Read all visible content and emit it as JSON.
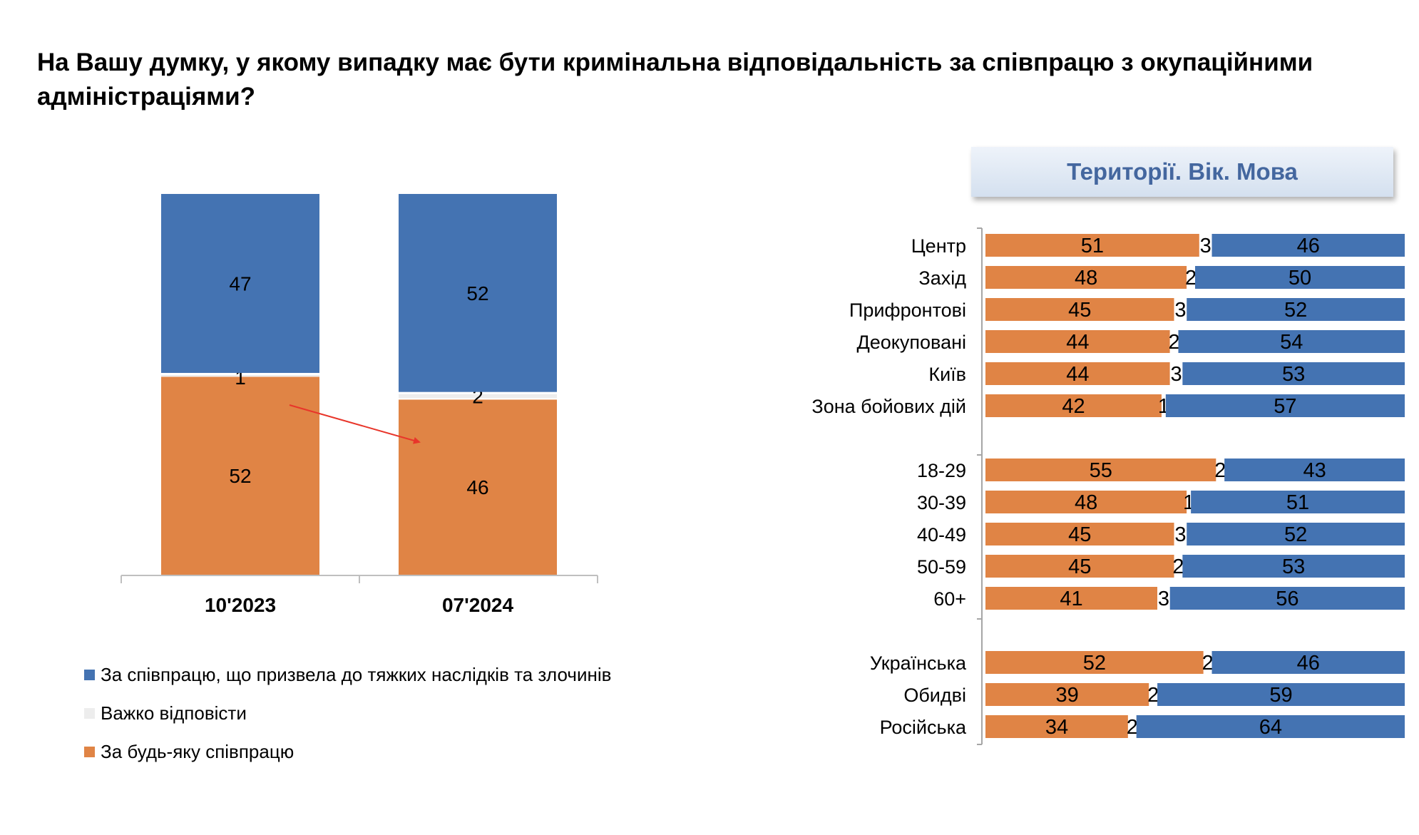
{
  "title": "На Вашу думку, у якому випадку має бути кримінальна відповідальність за співпрацю з окупаційними адміністраціями?",
  "panel_header": "Території. Вік. Мова",
  "colors": {
    "orange": "#e08445",
    "blue": "#4473b2",
    "gray": "#ededed",
    "arrow": "#e8352a"
  },
  "legend": [
    {
      "label": "За співпрацю, що призвела до тяжких наслідків та злочинів",
      "color": "#4473b2"
    },
    {
      "label": "Важко відповісти",
      "color": "#ededed"
    },
    {
      "label": "За будь-яку співпрацю",
      "color": "#e08445"
    }
  ],
  "chart_data": [
    {
      "type": "bar",
      "stacked": true,
      "orientation": "vertical",
      "categories": [
        "10'2023",
        "07'2024"
      ],
      "series": [
        {
          "name": "За будь-яку співпрацю",
          "values": [
            52,
            46
          ]
        },
        {
          "name": "Важко відповісти",
          "values": [
            1,
            2
          ]
        },
        {
          "name": "За співпрацю, що призвела до тяжких наслідків та злочинів",
          "values": [
            47,
            52
          ]
        }
      ],
      "ylim": [
        0,
        100
      ],
      "annotations": [
        "arrow from 10'2023 orange segment to 07'2024 orange segment (decrease)"
      ]
    },
    {
      "type": "bar",
      "stacked": true,
      "orientation": "horizontal",
      "groups": [
        {
          "rows": [
            {
              "label": "Центр",
              "values": [
                51,
                3,
                46
              ]
            },
            {
              "label": "Захід",
              "values": [
                48,
                2,
                50
              ]
            },
            {
              "label": "Прифронтові",
              "values": [
                45,
                3,
                52
              ]
            },
            {
              "label": "Деокуповані",
              "values": [
                44,
                2,
                54
              ]
            },
            {
              "label": "Київ",
              "values": [
                44,
                3,
                53
              ]
            },
            {
              "label": "Зона бойових дій",
              "values": [
                42,
                1,
                57
              ]
            }
          ]
        },
        {
          "rows": [
            {
              "label": "18-29",
              "values": [
                55,
                2,
                43
              ]
            },
            {
              "label": "30-39",
              "values": [
                48,
                1,
                51
              ]
            },
            {
              "label": "40-49",
              "values": [
                45,
                3,
                52
              ]
            },
            {
              "label": "50-59",
              "values": [
                45,
                2,
                53
              ]
            },
            {
              "label": "60+",
              "values": [
                41,
                3,
                56
              ]
            }
          ]
        },
        {
          "rows": [
            {
              "label": "Українська",
              "values": [
                52,
                2,
                46
              ]
            },
            {
              "label": "Обидві",
              "values": [
                39,
                2,
                59
              ]
            },
            {
              "label": "Російська",
              "values": [
                34,
                2,
                64
              ]
            }
          ]
        }
      ],
      "series_order": [
        "За будь-яку співпрацю",
        "Важко відповісти",
        "За співпрацю, що призвела до тяжких наслідків та злочинів"
      ],
      "xlim": [
        0,
        100
      ]
    }
  ]
}
